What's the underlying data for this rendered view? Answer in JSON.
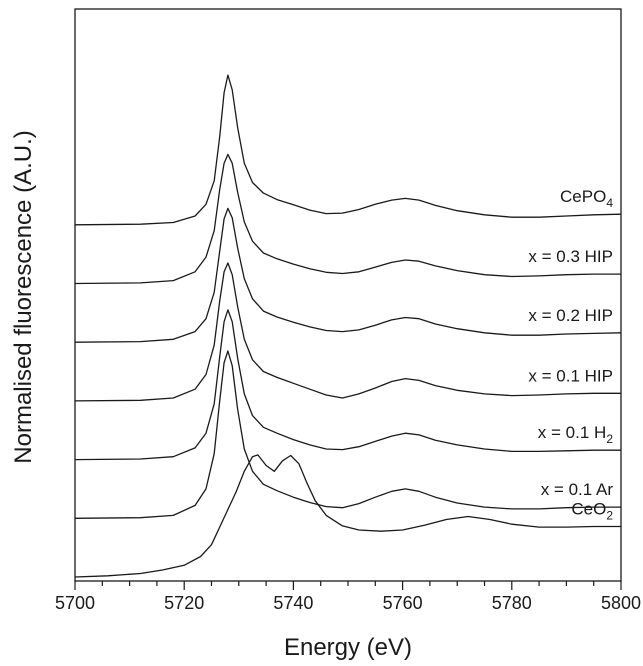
{
  "chart_data": {
    "type": "line",
    "title": "",
    "xlabel": "Energy (eV)",
    "ylabel": "Normalised fluorescence (A.U.)",
    "xlim": [
      5700,
      5800
    ],
    "x_major_ticks": [
      5700,
      5720,
      5740,
      5760,
      5780,
      5800
    ],
    "x_minor_step": 5,
    "y_ticks_labeled": false,
    "grid": false,
    "legend": "none",
    "series": [
      {
        "name": "CePO",
        "name_subscript": "4",
        "offset": 6.0,
        "points": [
          [
            5700,
            0.0
          ],
          [
            5712,
            0.01
          ],
          [
            5718,
            0.04
          ],
          [
            5722,
            0.15
          ],
          [
            5724,
            0.35
          ],
          [
            5725.5,
            0.75
          ],
          [
            5726.5,
            1.5
          ],
          [
            5727.3,
            2.25
          ],
          [
            5728,
            2.55
          ],
          [
            5728.8,
            2.3
          ],
          [
            5729.8,
            1.65
          ],
          [
            5731,
            1.05
          ],
          [
            5732.5,
            0.72
          ],
          [
            5734.5,
            0.54
          ],
          [
            5737,
            0.43
          ],
          [
            5740,
            0.34
          ],
          [
            5743,
            0.25
          ],
          [
            5746,
            0.19
          ],
          [
            5749,
            0.2
          ],
          [
            5752,
            0.26
          ],
          [
            5755,
            0.35
          ],
          [
            5758,
            0.42
          ],
          [
            5760.5,
            0.45
          ],
          [
            5763,
            0.42
          ],
          [
            5766,
            0.33
          ],
          [
            5770,
            0.24
          ],
          [
            5775,
            0.17
          ],
          [
            5780,
            0.13
          ],
          [
            5785,
            0.13
          ],
          [
            5790,
            0.15
          ],
          [
            5795,
            0.17
          ],
          [
            5800,
            0.18
          ]
        ]
      },
      {
        "name": "x = 0.3 HIP",
        "offset": 5.0,
        "points": [
          [
            5700,
            0.0
          ],
          [
            5712,
            0.01
          ],
          [
            5718,
            0.05
          ],
          [
            5722,
            0.2
          ],
          [
            5724,
            0.45
          ],
          [
            5725.5,
            0.9
          ],
          [
            5726.5,
            1.6
          ],
          [
            5727.3,
            2.05
          ],
          [
            5728,
            2.2
          ],
          [
            5728.8,
            2.05
          ],
          [
            5729.8,
            1.55
          ],
          [
            5731,
            1.05
          ],
          [
            5732.5,
            0.72
          ],
          [
            5734.5,
            0.52
          ],
          [
            5737,
            0.42
          ],
          [
            5740,
            0.33
          ],
          [
            5743,
            0.25
          ],
          [
            5746,
            0.19
          ],
          [
            5749,
            0.17
          ],
          [
            5752,
            0.2
          ],
          [
            5755,
            0.28
          ],
          [
            5758,
            0.36
          ],
          [
            5760.5,
            0.4
          ],
          [
            5763,
            0.38
          ],
          [
            5766,
            0.3
          ],
          [
            5770,
            0.22
          ],
          [
            5775,
            0.15
          ],
          [
            5780,
            0.12
          ],
          [
            5785,
            0.13
          ],
          [
            5790,
            0.15
          ],
          [
            5795,
            0.16
          ],
          [
            5800,
            0.16
          ]
        ]
      },
      {
        "name": "x = 0.2 HIP",
        "offset": 4.0,
        "points": [
          [
            5700,
            0.0
          ],
          [
            5712,
            0.01
          ],
          [
            5718,
            0.05
          ],
          [
            5722,
            0.18
          ],
          [
            5724,
            0.4
          ],
          [
            5725.5,
            0.85
          ],
          [
            5726.5,
            1.55
          ],
          [
            5727.3,
            2.1
          ],
          [
            5728,
            2.28
          ],
          [
            5728.8,
            2.12
          ],
          [
            5729.8,
            1.6
          ],
          [
            5731,
            1.08
          ],
          [
            5732.5,
            0.74
          ],
          [
            5734.5,
            0.53
          ],
          [
            5737,
            0.43
          ],
          [
            5740,
            0.34
          ],
          [
            5743,
            0.26
          ],
          [
            5746,
            0.2
          ],
          [
            5749,
            0.18
          ],
          [
            5752,
            0.21
          ],
          [
            5755,
            0.29
          ],
          [
            5758,
            0.38
          ],
          [
            5760.5,
            0.42
          ],
          [
            5763,
            0.4
          ],
          [
            5766,
            0.31
          ],
          [
            5770,
            0.23
          ],
          [
            5775,
            0.16
          ],
          [
            5780,
            0.12
          ],
          [
            5785,
            0.12
          ],
          [
            5790,
            0.14
          ],
          [
            5795,
            0.15
          ],
          [
            5800,
            0.16
          ]
        ]
      },
      {
        "name": "x = 0.1 HIP",
        "offset": 3.0,
        "points": [
          [
            5700,
            0.0
          ],
          [
            5712,
            0.01
          ],
          [
            5718,
            0.05
          ],
          [
            5722,
            0.2
          ],
          [
            5724,
            0.45
          ],
          [
            5725.5,
            0.95
          ],
          [
            5726.5,
            1.7
          ],
          [
            5727.3,
            2.2
          ],
          [
            5728,
            2.35
          ],
          [
            5728.8,
            2.15
          ],
          [
            5729.8,
            1.6
          ],
          [
            5731,
            1.05
          ],
          [
            5732.5,
            0.7
          ],
          [
            5734.5,
            0.5
          ],
          [
            5737,
            0.4
          ],
          [
            5740,
            0.3
          ],
          [
            5743,
            0.2
          ],
          [
            5746,
            0.1
          ],
          [
            5749,
            0.05
          ],
          [
            5752,
            0.12
          ],
          [
            5755,
            0.22
          ],
          [
            5758,
            0.33
          ],
          [
            5760.5,
            0.38
          ],
          [
            5763,
            0.35
          ],
          [
            5766,
            0.26
          ],
          [
            5770,
            0.18
          ],
          [
            5775,
            0.12
          ],
          [
            5780,
            0.09
          ],
          [
            5785,
            0.1
          ],
          [
            5790,
            0.12
          ],
          [
            5795,
            0.13
          ],
          [
            5800,
            0.13
          ]
        ]
      },
      {
        "name": "x = 0.1 H",
        "name_subscript": "2",
        "offset": 2.0,
        "points": [
          [
            5700,
            0.0
          ],
          [
            5712,
            0.01
          ],
          [
            5718,
            0.05
          ],
          [
            5722,
            0.2
          ],
          [
            5724,
            0.45
          ],
          [
            5725.5,
            0.95
          ],
          [
            5726.5,
            1.75
          ],
          [
            5727.3,
            2.35
          ],
          [
            5728,
            2.55
          ],
          [
            5728.8,
            2.35
          ],
          [
            5729.8,
            1.72
          ],
          [
            5731,
            1.12
          ],
          [
            5732.5,
            0.75
          ],
          [
            5734.5,
            0.55
          ],
          [
            5737,
            0.45
          ],
          [
            5740,
            0.34
          ],
          [
            5743,
            0.25
          ],
          [
            5746,
            0.18
          ],
          [
            5749,
            0.17
          ],
          [
            5752,
            0.22
          ],
          [
            5755,
            0.31
          ],
          [
            5758,
            0.4
          ],
          [
            5760.5,
            0.45
          ],
          [
            5763,
            0.42
          ],
          [
            5766,
            0.33
          ],
          [
            5770,
            0.25
          ],
          [
            5775,
            0.18
          ],
          [
            5780,
            0.14
          ],
          [
            5785,
            0.14
          ],
          [
            5790,
            0.15
          ],
          [
            5795,
            0.16
          ],
          [
            5800,
            0.16
          ]
        ]
      },
      {
        "name": "x = 0.1 Ar",
        "offset": 1.0,
        "points": [
          [
            5700,
            0.0
          ],
          [
            5712,
            0.01
          ],
          [
            5718,
            0.05
          ],
          [
            5722,
            0.22
          ],
          [
            5724,
            0.5
          ],
          [
            5725.5,
            1.1
          ],
          [
            5726.5,
            2.0
          ],
          [
            5727.3,
            2.65
          ],
          [
            5728,
            2.85
          ],
          [
            5728.8,
            2.6
          ],
          [
            5729.8,
            1.85
          ],
          [
            5731,
            1.18
          ],
          [
            5732.5,
            0.8
          ],
          [
            5734.5,
            0.58
          ],
          [
            5737,
            0.47
          ],
          [
            5740,
            0.36
          ],
          [
            5743,
            0.27
          ],
          [
            5746,
            0.2
          ],
          [
            5749,
            0.18
          ],
          [
            5752,
            0.25
          ],
          [
            5755,
            0.36
          ],
          [
            5758,
            0.46
          ],
          [
            5760.5,
            0.5
          ],
          [
            5763,
            0.46
          ],
          [
            5766,
            0.36
          ],
          [
            5770,
            0.26
          ],
          [
            5775,
            0.19
          ],
          [
            5780,
            0.16
          ],
          [
            5785,
            0.16
          ],
          [
            5790,
            0.18
          ],
          [
            5795,
            0.19
          ],
          [
            5800,
            0.19
          ]
        ]
      },
      {
        "name": "CeO",
        "name_subscript": "2",
        "offset": 0.0,
        "points": [
          [
            5700,
            0.0
          ],
          [
            5706,
            0.02
          ],
          [
            5712,
            0.06
          ],
          [
            5716,
            0.12
          ],
          [
            5720,
            0.2
          ],
          [
            5723,
            0.35
          ],
          [
            5725,
            0.55
          ],
          [
            5726.5,
            0.85
          ],
          [
            5728,
            1.15
          ],
          [
            5729.5,
            1.45
          ],
          [
            5731,
            1.8
          ],
          [
            5732.5,
            2.05
          ],
          [
            5733.5,
            2.08
          ],
          [
            5735,
            1.9
          ],
          [
            5736.5,
            1.8
          ],
          [
            5738,
            1.98
          ],
          [
            5739.5,
            2.07
          ],
          [
            5741,
            1.93
          ],
          [
            5742.5,
            1.6
          ],
          [
            5744,
            1.3
          ],
          [
            5746,
            1.05
          ],
          [
            5749,
            0.87
          ],
          [
            5752,
            0.8
          ],
          [
            5756,
            0.78
          ],
          [
            5760,
            0.8
          ],
          [
            5764,
            0.88
          ],
          [
            5768,
            0.98
          ],
          [
            5772,
            1.03
          ],
          [
            5776,
            0.98
          ],
          [
            5780,
            0.9
          ],
          [
            5785,
            0.85
          ],
          [
            5790,
            0.85
          ],
          [
            5795,
            0.86
          ],
          [
            5800,
            0.86
          ]
        ]
      }
    ]
  }
}
